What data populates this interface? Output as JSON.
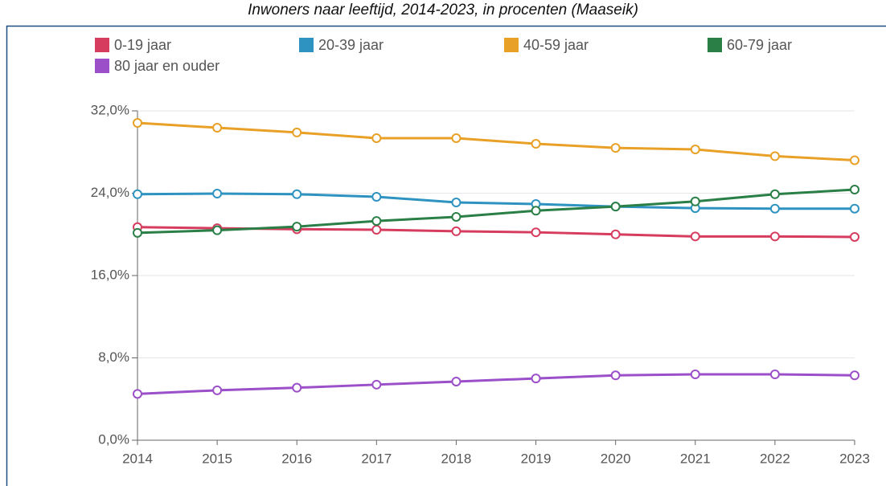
{
  "chart_data": {
    "type": "line",
    "title": "Inwoners naar leeftijd, 2014-2023, in procenten (Maaseik)",
    "x": [
      2014,
      2015,
      2016,
      2017,
      2018,
      2019,
      2020,
      2021,
      2022,
      2023
    ],
    "xlim": [
      2014,
      2023
    ],
    "xticks": [
      2014,
      2015,
      2016,
      2017,
      2018,
      2019,
      2020,
      2021,
      2022,
      2023
    ],
    "ylim": [
      0,
      32
    ],
    "yticks": [
      {
        "value": 0,
        "label": "0,0%"
      },
      {
        "value": 8,
        "label": "8,0%"
      },
      {
        "value": 16,
        "label": "16,0%"
      },
      {
        "value": 24,
        "label": "24,0%"
      },
      {
        "value": 32,
        "label": "32,0%"
      }
    ],
    "grid": true,
    "legend": "top",
    "series": [
      {
        "name": "0-19 jaar",
        "color": "#d63c5e",
        "values": [
          20.7,
          20.6,
          20.5,
          20.45,
          20.3,
          20.2,
          20.0,
          19.8,
          19.8,
          19.75
        ]
      },
      {
        "name": "20-39 jaar",
        "color": "#2e93c0",
        "values": [
          23.9,
          23.96,
          23.9,
          23.65,
          23.1,
          22.95,
          22.7,
          22.55,
          22.5,
          22.5
        ]
      },
      {
        "name": "40-59 jaar",
        "color": "#e9a026",
        "values": [
          30.83,
          30.36,
          29.9,
          29.35,
          29.35,
          28.8,
          28.4,
          28.25,
          27.6,
          27.2
        ]
      },
      {
        "name": "60-79 jaar",
        "color": "#2a7f46",
        "values": [
          20.15,
          20.4,
          20.75,
          21.3,
          21.7,
          22.3,
          22.7,
          23.2,
          23.9,
          24.35
        ]
      },
      {
        "name": "80 jaar en ouder",
        "color": "#9b4fc8",
        "values": [
          4.5,
          4.85,
          5.1,
          5.4,
          5.7,
          6.0,
          6.3,
          6.4,
          6.4,
          6.3
        ]
      }
    ]
  }
}
